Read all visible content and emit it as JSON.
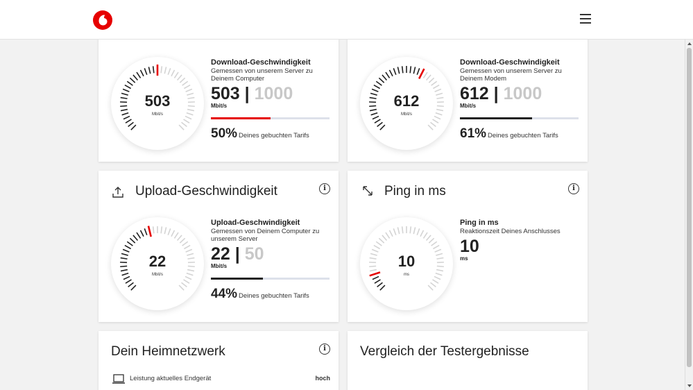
{
  "header": {
    "logo_icon": "vodafone-logo-icon",
    "menu_icon": "hamburger-menu-icon",
    "brand_color": "#e60000"
  },
  "cards": {
    "download_computer": {
      "gauge": {
        "value": "503",
        "unit": "Mbit/s",
        "level": 0.503
      },
      "title": "Download-Geschwindigkeit",
      "description": "Gemessen von unserem Server zu Deinem Computer",
      "value": "503",
      "separator": "|",
      "max": "1000",
      "unit": "Mbit/s",
      "progress": 0.5,
      "bar_color": "#e60000",
      "percent": "50%",
      "percent_text": "Deines gebuchten Tarifs"
    },
    "download_modem": {
      "gauge": {
        "value": "612",
        "unit": "Mbit/s",
        "level": 0.612
      },
      "title": "Download-Geschwindigkeit",
      "description": "Gemessen von unserem Server zu Deinem Modem",
      "value": "612",
      "separator": "|",
      "max": "1000",
      "unit": "Mbit/s",
      "progress": 0.61,
      "bar_color": "#222222",
      "percent": "61%",
      "percent_text": "Deines gebuchten Tarifs"
    },
    "upload": {
      "heading": "Upload-Geschwindigkeit",
      "heading_icon": "upload-icon",
      "info_icon": "info-icon",
      "info_symbol": "i",
      "gauge": {
        "value": "22",
        "unit": "Mbit/s",
        "level": 0.44
      },
      "title": "Upload-Geschwindigkeit",
      "description": "Gemessen von Deinem Computer zu unserem Server",
      "value": "22",
      "separator": "|",
      "max": "50",
      "unit": "Mbit/s",
      "progress": 0.44,
      "bar_color": "#222222",
      "percent": "44%",
      "percent_text": "Deines gebuchten Tarifs"
    },
    "ping": {
      "heading": "Ping in ms",
      "heading_icon": "ping-arrows-icon",
      "info_icon": "info-icon",
      "info_symbol": "i",
      "gauge": {
        "value": "10",
        "unit": "ms",
        "level": 0.1
      },
      "title": "Ping in ms",
      "description": "Reaktionszeit Deines Anschlusses",
      "value": "10",
      "unit": "ms"
    },
    "home_network": {
      "heading": "Dein Heimnetzwerk",
      "info_icon": "info-icon",
      "info_symbol": "i",
      "row_icon": "laptop-icon",
      "row_label": "Leistung aktuelles Endgerät",
      "row_value": "hoch"
    },
    "comparison": {
      "heading": "Vergleich der Testergebnisse"
    }
  }
}
